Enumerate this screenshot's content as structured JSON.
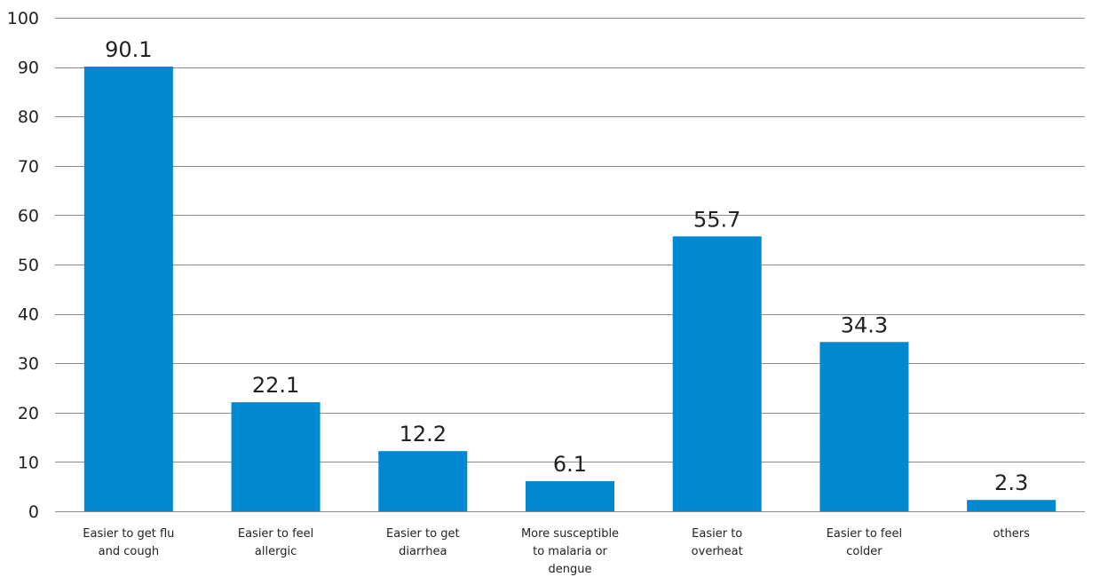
{
  "chart_data": {
    "type": "bar",
    "categories": [
      [
        "Easier to get flu",
        "and cough"
      ],
      [
        "Easier to feel",
        "allergic"
      ],
      [
        "Easier to get",
        "diarrhea"
      ],
      [
        "More susceptible",
        "to malaria or",
        "dengue"
      ],
      [
        "Easier to",
        "overheat"
      ],
      [
        "Easier to feel",
        "colder"
      ],
      [
        "others"
      ]
    ],
    "values": [
      90.1,
      22.1,
      12.2,
      6.1,
      55.7,
      34.3,
      2.3
    ],
    "value_labels": [
      "90.1",
      "22.1",
      "12.2",
      "6.1",
      "55.7",
      "34.3",
      "2.3"
    ],
    "yticks": [
      0,
      10,
      20,
      30,
      40,
      50,
      60,
      70,
      80,
      90,
      100
    ],
    "ylim": [
      0,
      100
    ],
    "grid": true,
    "bar_color": "#0088d1",
    "grid_color": "#8c8c8c",
    "text_color": "#222222"
  }
}
